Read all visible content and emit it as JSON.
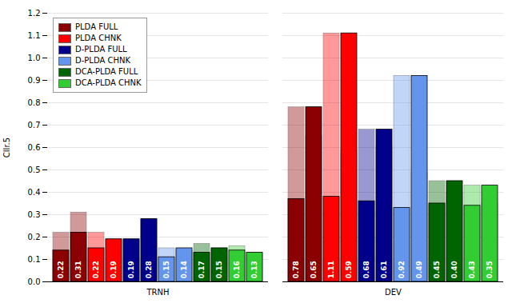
{
  "chart_data": {
    "type": "bar",
    "categories": [
      "TRNH",
      "DEV"
    ],
    "ylabel": "Cllr.5",
    "ylim": [
      0,
      1.2
    ],
    "yticks": [
      {
        "value": 0,
        "label": "0.0"
      },
      0.1,
      0.2,
      0.3,
      0.4,
      0.5,
      0.6,
      0.7,
      0.8,
      0.9,
      {
        "value": 1,
        "label": "1.0"
      },
      1.1,
      1.2
    ],
    "grid": true,
    "legend": "upper left",
    "data_labels": true,
    "series": [
      {
        "name": "PLDA FULL",
        "color": "#8B0000",
        "values": [
          0.22,
          0.78
        ],
        "value_labels": [
          "0.22",
          "0.78"
        ],
        "solid": [
          0.14,
          0.37
        ]
      },
      {
        "name": "PLDA FULL",
        "color": "#8B0000",
        "values": [
          0.31,
          0.65
        ],
        "value_labels": [
          "0.31",
          "0.65"
        ],
        "solid": [
          0.22,
          0.78
        ]
      },
      {
        "name": "PLDA CHNK",
        "color": "#FF0000",
        "values": [
          0.22,
          1.11
        ],
        "value_labels": [
          "0.22",
          "1.11"
        ],
        "solid": [
          0.15,
          0.38
        ]
      },
      {
        "name": "PLDA CHNK",
        "color": "#FF0000",
        "values": [
          0.19,
          0.59
        ],
        "value_labels": [
          "0.19",
          "0.59"
        ],
        "solid": [
          0.19,
          1.11
        ]
      },
      {
        "name": "D-PLDA FULL",
        "color": "#00008B",
        "values": [
          0.19,
          0.68
        ],
        "value_labels": [
          "0.19",
          "0.68"
        ],
        "solid": [
          0.19,
          0.36
        ]
      },
      {
        "name": "D-PLDA FULL",
        "color": "#00008B",
        "values": [
          0.28,
          0.61
        ],
        "value_labels": [
          "0.28",
          "0.61"
        ],
        "solid": [
          0.28,
          0.68
        ]
      },
      {
        "name": "D-PLDA CHNK",
        "color": "#6495ED",
        "values": [
          0.15,
          0.92
        ],
        "value_labels": [
          "0.15",
          "0.92"
        ],
        "solid": [
          0.11,
          0.33
        ]
      },
      {
        "name": "D-PLDA CHNK",
        "color": "#6495ED",
        "values": [
          0.14,
          0.49
        ],
        "value_labels": [
          "0.14",
          "0.49"
        ],
        "solid": [
          0.15,
          0.92
        ]
      },
      {
        "name": "DCA-PLDA FULL",
        "color": "#006400",
        "values": [
          0.17,
          0.45
        ],
        "value_labels": [
          "0.17",
          "0.45"
        ],
        "solid": [
          0.13,
          0.35
        ]
      },
      {
        "name": "DCA-PLDA FULL",
        "color": "#006400",
        "values": [
          0.15,
          0.4
        ],
        "value_labels": [
          "0.15",
          "0.40"
        ],
        "solid": [
          0.15,
          0.45
        ]
      },
      {
        "name": "DCA-PLDA CHNK",
        "color": "#32CD32",
        "values": [
          0.16,
          0.43
        ],
        "value_labels": [
          "0.16",
          "0.43"
        ],
        "solid": [
          0.14,
          0.34
        ]
      },
      {
        "name": "DCA-PLDA CHNK",
        "color": "#32CD32",
        "values": [
          0.13,
          0.35
        ],
        "value_labels": [
          "0.13",
          "0.35"
        ],
        "solid": [
          0.13,
          0.43
        ]
      }
    ]
  }
}
